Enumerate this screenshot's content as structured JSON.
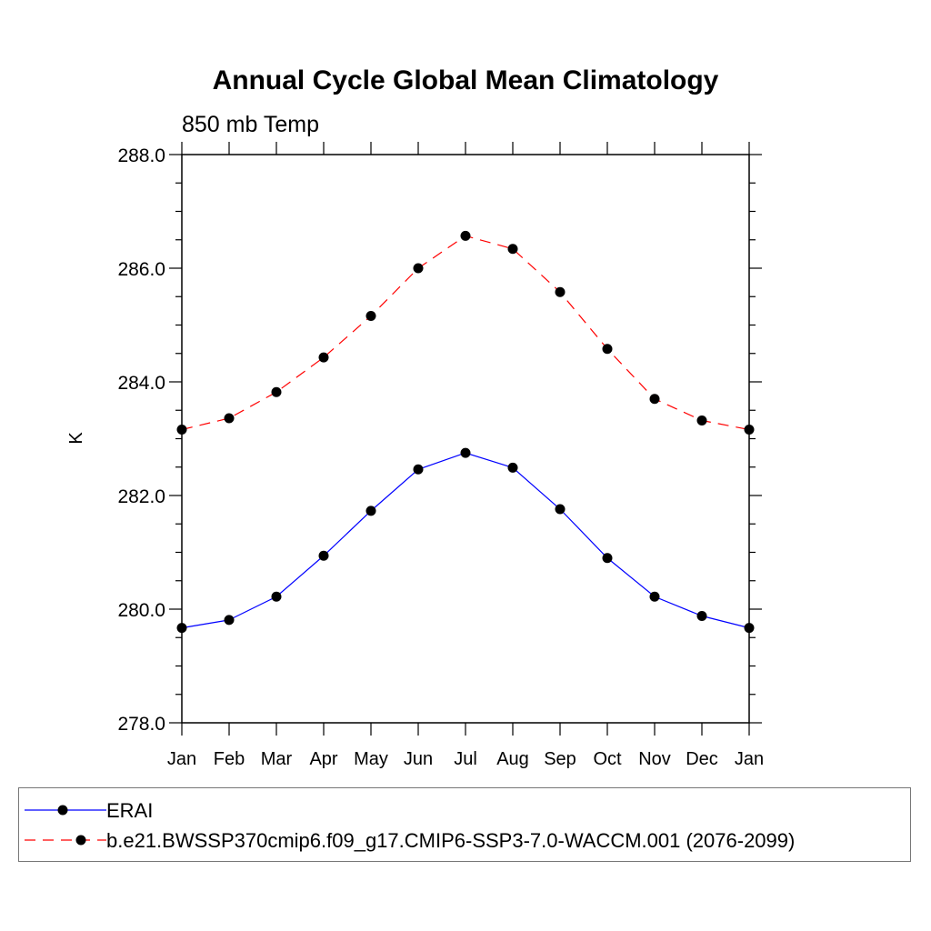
{
  "chart_data": {
    "type": "line",
    "title": "Annual Cycle Global Mean Climatology",
    "subtitle": "850 mb Temp",
    "xlabel": "",
    "ylabel": "K",
    "categories": [
      "Jan",
      "Feb",
      "Mar",
      "Apr",
      "May",
      "Jun",
      "Jul",
      "Aug",
      "Sep",
      "Oct",
      "Nov",
      "Dec",
      "Jan"
    ],
    "ylim": [
      278.0,
      288.0
    ],
    "yticks": [
      "278.0",
      "280.0",
      "282.0",
      "284.0",
      "286.0",
      "288.0"
    ],
    "grid": false,
    "legend_position": "bottom",
    "series": [
      {
        "name": "ERAI",
        "color": "#0000ff",
        "style": "solid",
        "values": [
          279.67,
          279.81,
          280.22,
          280.94,
          281.73,
          282.46,
          282.75,
          282.49,
          281.76,
          280.9,
          280.22,
          279.88,
          279.67
        ]
      },
      {
        "name": "b.e21.BWSSP370cmip6.f09_g17.CMIP6-SSP3-7.0-WACCM.001 (2076-2099)",
        "color": "#ff0000",
        "style": "dashed",
        "values": [
          283.16,
          283.36,
          283.82,
          284.43,
          285.16,
          286.0,
          286.57,
          286.34,
          285.58,
          284.58,
          283.7,
          283.32,
          283.16
        ]
      }
    ]
  }
}
